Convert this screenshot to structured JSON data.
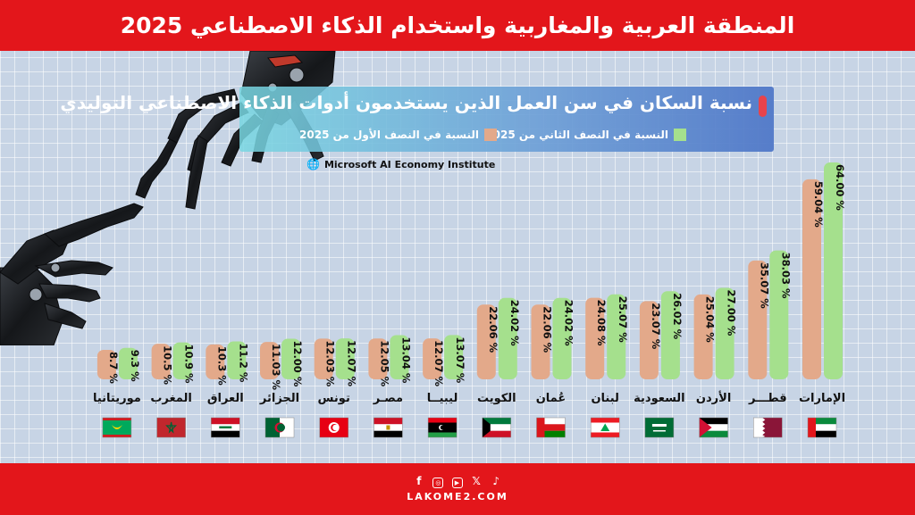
{
  "header": {
    "title": "المنطقة العربية والمغاربية واستخدام الذكاء الاصطناعي 2025"
  },
  "legend": {
    "title": "نسبة السكان في سن العمل الذين يستخدمون أدوات الذكاء الاصطناعي التوليدي",
    "items": [
      {
        "label": "النسبة في النصف الثاني من 2025",
        "color": "#a5e08d"
      },
      {
        "label": "النسبة في النصف الأول من 2025",
        "color": "#e3a98a"
      }
    ],
    "marker_color": "#e8434b"
  },
  "source": {
    "icon": "globe-icon",
    "text": "Microsoft AI Economy Institute"
  },
  "footer": {
    "website": "LAKOME2.COM",
    "social_icons": [
      "facebook-icon",
      "instagram-icon",
      "youtube-icon",
      "x-icon",
      "tiktok-icon"
    ]
  },
  "chart_data": {
    "type": "bar",
    "categories": [
      "الإمارات",
      "قطـــر",
      "الأردن",
      "السعودية",
      "لبنان",
      "عُمان",
      "الكويت",
      "ليبيــا",
      "مصـر",
      "تونس",
      "الجزائر",
      "العراق",
      "المغرب",
      "موريتانيا"
    ],
    "series": [
      {
        "name": "النسبة في النصف الأول من 2025",
        "color": "#e3a98a",
        "values": [
          59.04,
          35.07,
          25.04,
          23.07,
          24.08,
          22.06,
          22.06,
          12.07,
          12.05,
          12.03,
          11.03,
          10.3,
          10.5,
          8.7
        ]
      },
      {
        "name": "النسبة في النصف الثاني من 2025",
        "color": "#a5e08d",
        "values": [
          64.0,
          38.03,
          27.0,
          26.02,
          25.07,
          24.02,
          24.02,
          13.07,
          13.04,
          12.07,
          12.0,
          11.2,
          10.9,
          9.3
        ]
      }
    ],
    "data_labels": [
      [
        "59.04 %",
        "35.07 %",
        "25.04 %",
        "23.07 %",
        "24.08 %",
        "22.06 %",
        "22.06 %",
        "12.07 %",
        "12.05 %",
        "12.03 %",
        "11.03 %",
        "10.3 %",
        "10.5 %",
        "8.7 %"
      ],
      [
        "64.00 %",
        "38.03 %",
        "27.00 %",
        "26.02 %",
        "25.07 %",
        "24.02 %",
        "24.02 %",
        "13.07 %",
        "13.04 %",
        "12.07 %",
        "12.00 %",
        "11.2 %",
        "10.9 %",
        "9.3 %"
      ]
    ],
    "flags": [
      "uae",
      "qatar",
      "jordan",
      "saudi",
      "lebanon",
      "oman",
      "kuwait",
      "libya",
      "egypt",
      "tunisia",
      "algeria",
      "iraq",
      "morocco",
      "mauritania"
    ],
    "ylim": [
      0,
      64
    ],
    "grid": true,
    "legend_position": "top-right",
    "title": "",
    "xlabel": "",
    "ylabel": ""
  }
}
